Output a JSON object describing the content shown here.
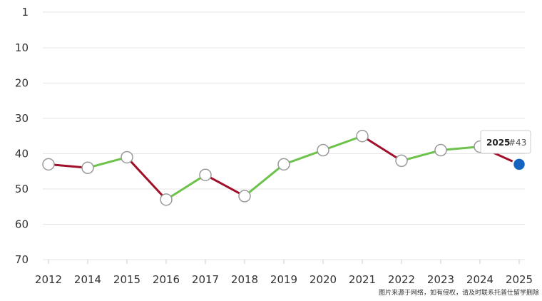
{
  "chart_data": {
    "type": "line",
    "x": [
      "2012",
      "2014",
      "2015",
      "2016",
      "2017",
      "2018",
      "2019",
      "2020",
      "2021",
      "2022",
      "2023",
      "2024",
      "2025"
    ],
    "values": [
      43,
      44,
      41,
      53,
      46,
      52,
      43,
      39,
      35,
      42,
      39,
      38,
      43
    ],
    "y_ticks": [
      1,
      10,
      20,
      30,
      40,
      50,
      60,
      70
    ],
    "ylim": [
      1,
      70
    ],
    "y_inverted": true,
    "colors": {
      "up": "#6cc24a",
      "down": "#a0102a",
      "highlight": "#1565c0",
      "marker_stroke": "#999999"
    },
    "tooltip": {
      "year": "2025",
      "rank": "#43"
    }
  },
  "watermark": "图片来源于网络，如有侵权，请及时联系托普仕留学删除"
}
